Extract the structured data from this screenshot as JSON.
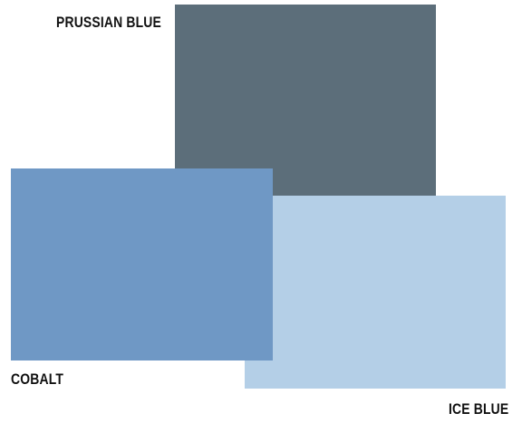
{
  "swatches": [
    {
      "key": "prussian",
      "label": "PRUSSIAN BLUE",
      "color": "#5c6e7a"
    },
    {
      "key": "ice",
      "label": "ICE BLUE",
      "color": "#b4cfe7"
    },
    {
      "key": "cobalt",
      "label": "COBALT",
      "color": "#6f98c5"
    }
  ]
}
